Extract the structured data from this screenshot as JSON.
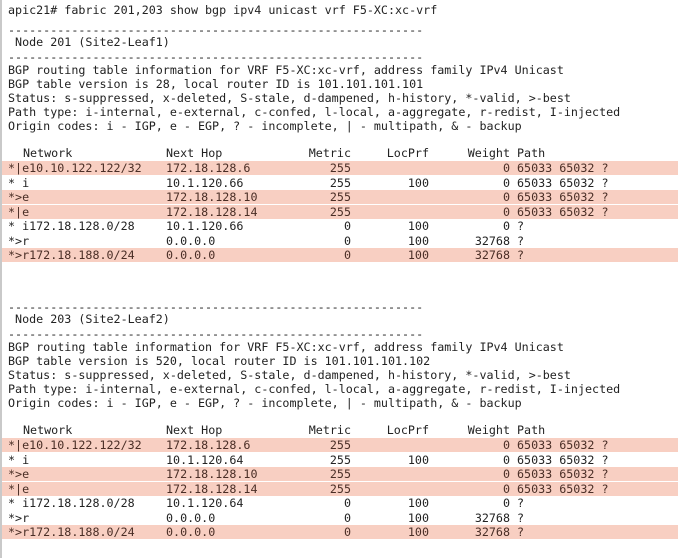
{
  "command": "apic21# fabric 201,203 show bgp ipv4 unicast vrf F5-XC:xc-vrf",
  "separator": "-----------------------------------------------------------",
  "colors": {
    "highlight": "#f8cfc2",
    "text": "#222222"
  },
  "columns": {
    "network": "Network",
    "next_hop": "Next Hop",
    "metric": "Metric",
    "locprf": "LocPrf",
    "weight": "Weight",
    "path": "Path"
  },
  "nodes": [
    {
      "title": " Node 201 (Site2-Leaf1)",
      "info": [
        "BGP routing table information for VRF F5-XC:xc-vrf, address family IPv4 Unicast",
        "BGP table version is 28, local router ID is 101.101.101.101",
        "Status: s-suppressed, x-deleted, S-stale, d-dampened, h-history, *-valid, >-best",
        "Path type: i-internal, e-external, c-confed, l-local, a-aggregate, r-redist, I-injected",
        "Origin codes: i - IGP, e - EGP, ? - incomplete, | - multipath, & - backup"
      ],
      "rows": [
        {
          "network": "*|e10.10.122.122/32",
          "next_hop": "172.18.128.6",
          "metric": "255",
          "locprf": "",
          "weight": "0",
          "path": "65033 65032 ?",
          "highlight": true
        },
        {
          "network": "* i",
          "next_hop": "10.1.120.66",
          "metric": "255",
          "locprf": "100",
          "weight": "0",
          "path": "65033 65032 ?",
          "highlight": false
        },
        {
          "network": "*>e",
          "next_hop": "172.18.128.10",
          "metric": "255",
          "locprf": "",
          "weight": "0",
          "path": "65033 65032 ?",
          "highlight": true
        },
        {
          "network": "*|e",
          "next_hop": "172.18.128.14",
          "metric": "255",
          "locprf": "",
          "weight": "0",
          "path": "65033 65032 ?",
          "highlight": true
        },
        {
          "network": "* i172.18.128.0/28",
          "next_hop": "10.1.120.66",
          "metric": "0",
          "locprf": "100",
          "weight": "0",
          "path": "?",
          "highlight": false
        },
        {
          "network": "*>r",
          "next_hop": "0.0.0.0",
          "metric": "0",
          "locprf": "100",
          "weight": "32768",
          "path": "?",
          "highlight": false
        },
        {
          "network": "*>r172.18.188.0/24",
          "next_hop": "0.0.0.0",
          "metric": "0",
          "locprf": "100",
          "weight": "32768",
          "path": "?",
          "highlight": true
        }
      ]
    },
    {
      "title": " Node 203 (Site2-Leaf2)",
      "info": [
        "BGP routing table information for VRF F5-XC:xc-vrf, address family IPv4 Unicast",
        "BGP table version is 520, local router ID is 101.101.101.102",
        "Status: s-suppressed, x-deleted, S-stale, d-dampened, h-history, *-valid, >-best",
        "Path type: i-internal, e-external, c-confed, l-local, a-aggregate, r-redist, I-injected",
        "Origin codes: i - IGP, e - EGP, ? - incomplete, | - multipath, & - backup"
      ],
      "rows": [
        {
          "network": "*|e10.10.122.122/32",
          "next_hop": "172.18.128.6",
          "metric": "255",
          "locprf": "",
          "weight": "0",
          "path": "65033 65032 ?",
          "highlight": true
        },
        {
          "network": "* i",
          "next_hop": "10.1.120.64",
          "metric": "255",
          "locprf": "100",
          "weight": "0",
          "path": "65033 65032 ?",
          "highlight": false
        },
        {
          "network": "*>e",
          "next_hop": "172.18.128.10",
          "metric": "255",
          "locprf": "",
          "weight": "0",
          "path": "65033 65032 ?",
          "highlight": true
        },
        {
          "network": "*|e",
          "next_hop": "172.18.128.14",
          "metric": "255",
          "locprf": "",
          "weight": "0",
          "path": "65033 65032 ?",
          "highlight": true
        },
        {
          "network": "* i172.18.128.0/28",
          "next_hop": "10.1.120.64",
          "metric": "0",
          "locprf": "100",
          "weight": "0",
          "path": "?",
          "highlight": false
        },
        {
          "network": "*>r",
          "next_hop": "0.0.0.0",
          "metric": "0",
          "locprf": "100",
          "weight": "32768",
          "path": "?",
          "highlight": false
        },
        {
          "network": "*>r172.18.188.0/24",
          "next_hop": "0.0.0.0",
          "metric": "0",
          "locprf": "100",
          "weight": "32768",
          "path": "?",
          "highlight": true
        }
      ]
    }
  ]
}
